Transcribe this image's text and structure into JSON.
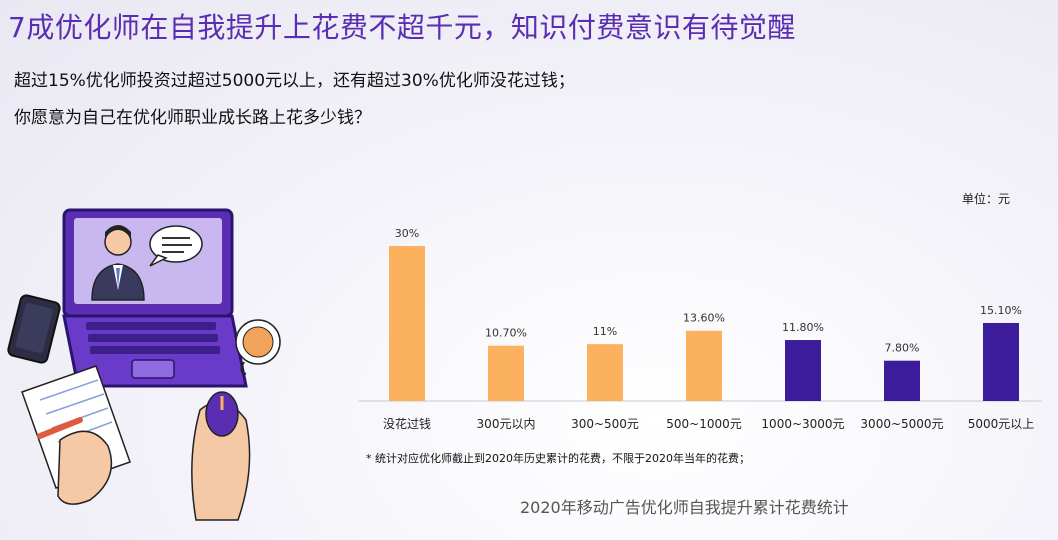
{
  "title": "7成优化师在自我提升上花费不超千元，知识付费意识有待觉醒",
  "subtitle_line1": "超过15%优化师投资过超过5000元以上，还有超过30%优化师没花过钱；",
  "subtitle_line2": "你愿意为自己在优化师职业成长路上花多少钱？",
  "unit_label": "单位：元",
  "footnote": "* 统计对应优化师截止到2020年历史累计的花费，不限于2020年当年的花费；",
  "caption": "2020年移动广告优化师自我提升累计花费统计",
  "colors": {
    "title": "#5b2db3",
    "bar_low": "#fcb15e",
    "bar_high": "#3d1c9c"
  },
  "chart_data": {
    "type": "bar",
    "categories": [
      "没花过钱",
      "300元以内",
      "300~500元",
      "500~1000元",
      "1000~3000元",
      "3000~5000元",
      "5000元以上"
    ],
    "values": [
      30,
      10.7,
      11,
      13.6,
      11.8,
      7.8,
      15.1
    ],
    "data_labels": [
      "30%",
      "10.70%",
      "11%",
      "13.60%",
      "11.80%",
      "7.80%",
      "15.10%"
    ],
    "colors": [
      "#fcb15e",
      "#fcb15e",
      "#fcb15e",
      "#fcb15e",
      "#3d1c9c",
      "#3d1c9c",
      "#3d1c9c"
    ],
    "ylim": [
      0,
      30
    ],
    "grid": false,
    "legend": "none"
  }
}
